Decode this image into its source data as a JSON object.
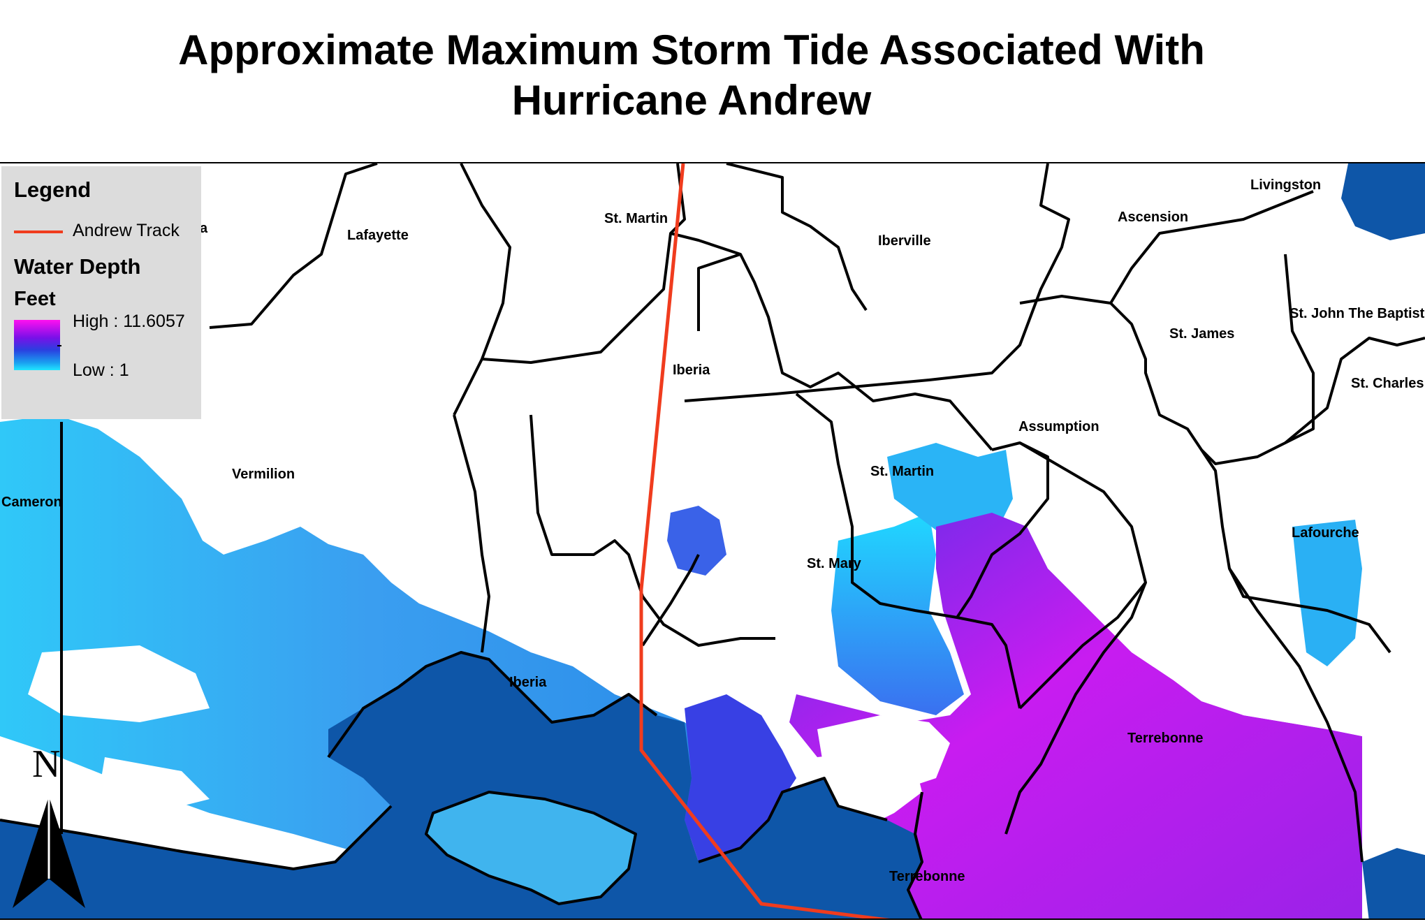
{
  "title_line1": "Approximate Maximum Storm Tide Associated With",
  "title_line2": "Hurricane Andrew",
  "legend": {
    "heading": "Legend",
    "track_label": "Andrew Track",
    "depth_heading": "Water Depth",
    "unit": "Feet",
    "high_label": "High : 11.6057",
    "low_label": "Low : 1",
    "clipped_fragment": "a",
    "colors": {
      "track": "#f03c1e",
      "high": "#ff10f0",
      "low": "#20e6ff"
    }
  },
  "parishes": {
    "lafayette": "Lafayette",
    "st_martin_north": "St. Martin",
    "iberville": "Iberville",
    "ascension": "Ascension",
    "livingston": "Livingston",
    "st_james": "St. James",
    "st_john": "St. John The Baptist",
    "st_charles": "St. Charles",
    "iberia_north": "Iberia",
    "assumption": "Assumption",
    "vermilion": "Vermilion",
    "cameron": "Cameron",
    "st_martin_south": "St. Martin",
    "st_mary": "St. Mary",
    "lafourche": "Lafourche",
    "iberia_island": "Iberia",
    "terrebonne": "Terrebonne",
    "terrebonne_coast": "Terrebonne"
  },
  "north_arrow": {
    "label": "N"
  },
  "colors": {
    "gulf": "#0e56a8",
    "boundary": "#000000"
  }
}
